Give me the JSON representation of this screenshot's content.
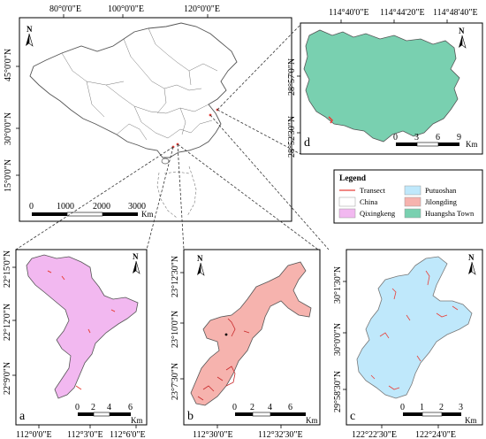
{
  "china_map": {
    "top_ticks": [
      "80°0'0\"E",
      "100°0'0\"E",
      "120°0'0\"E"
    ],
    "left_ticks": [
      "45°0'0\"N",
      "30°0'0\"N",
      "15°0'0\"N"
    ],
    "scale": [
      "0",
      "1000",
      "2000",
      "3000",
      "Km"
    ],
    "north": "N"
  },
  "panel_d": {
    "letter": "d",
    "top_ticks": [
      "114°40'0\"E",
      "114°44'20\"E",
      "114°48'40\"E"
    ],
    "left_ticks": [
      "28°57'0\"N",
      "28°52'30\"N"
    ],
    "scale": [
      "0",
      "3",
      "6",
      "9",
      "Km"
    ],
    "north": "N",
    "fill": "#79d0b0"
  },
  "legend": {
    "title": "Legend",
    "items": [
      {
        "label": "Transect",
        "kind": "line",
        "color": "#e8403a"
      },
      {
        "label": "Putuoshan",
        "kind": "box",
        "color": "#bfe8fb"
      },
      {
        "label": "China",
        "kind": "box",
        "color": "#ffffff"
      },
      {
        "label": "Jilongding",
        "kind": "box",
        "color": "#f6b3ae"
      },
      {
        "label": "Qixingkeng",
        "kind": "box",
        "color": "#f2b8f0"
      },
      {
        "label": "Huangsha Town",
        "kind": "box",
        "color": "#79d0b0"
      }
    ]
  },
  "panel_a": {
    "letter": "a",
    "left_ticks": [
      "22°15'0\"N",
      "22°12'0\"N",
      "22°9'0\"N"
    ],
    "bottom_ticks": [
      "112°0'0\"E",
      "112°3'0\"E",
      "112°6'0\"E"
    ],
    "scale": [
      "0",
      "2",
      "4",
      "6",
      "Km"
    ],
    "north": "N",
    "fill": "#f2b8f0"
  },
  "panel_b": {
    "letter": "b",
    "left_ticks": [
      "23°12'30\"N",
      "23°10'0\"N",
      "23°7'30\"N"
    ],
    "bottom_ticks": [
      "112°30'0\"E",
      "112°32'30\"E"
    ],
    "scale": [
      "0",
      "2",
      "4",
      "6",
      "Km"
    ],
    "north": "N",
    "fill": "#f6b3ae"
  },
  "panel_c": {
    "letter": "c",
    "left_ticks": [
      "30°1'30\"N",
      "30°0'0\"N",
      "29°58'30\"N"
    ],
    "bottom_ticks": [
      "122°22'30\"E",
      "122°24'0\"E"
    ],
    "scale": [
      "0",
      "1",
      "2",
      "3",
      "Km"
    ],
    "north": "N",
    "fill": "#bfe8fb"
  }
}
